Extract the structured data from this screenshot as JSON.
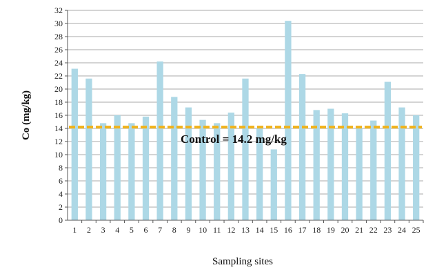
{
  "chart_data": {
    "type": "bar",
    "categories": [
      "1",
      "2",
      "3",
      "4",
      "5",
      "6",
      "7",
      "8",
      "9",
      "10",
      "11",
      "12",
      "13",
      "14",
      "15",
      "16",
      "17",
      "18",
      "19",
      "20",
      "21",
      "22",
      "23",
      "24",
      "25"
    ],
    "series": [
      {
        "values": [
          23.1,
          21.6,
          14.8,
          16.0,
          14.8,
          15.8,
          24.2,
          18.8,
          17.2,
          15.3,
          14.8,
          16.4,
          21.6,
          14.0,
          10.8,
          30.4,
          22.3,
          16.8,
          17.0,
          16.3,
          14.1,
          15.2,
          21.1,
          17.2,
          16.0
        ]
      }
    ],
    "xlabel": "Sampling sites",
    "ylabel": "Co (mg/kg)",
    "ylim": [
      0,
      32
    ],
    "yticks": [
      "0",
      "2",
      "4",
      "6",
      "8",
      "10",
      "12",
      "14",
      "16",
      "18",
      "20",
      "22",
      "24",
      "26",
      "28",
      "30",
      "32"
    ],
    "grid": true,
    "reference_line": {
      "value": 14.2,
      "label": "Control = 14.2 mg/kg"
    },
    "colors": {
      "bar": "#add8e6",
      "reference": "#f0b21a",
      "grid": "#a8a8a8"
    }
  }
}
